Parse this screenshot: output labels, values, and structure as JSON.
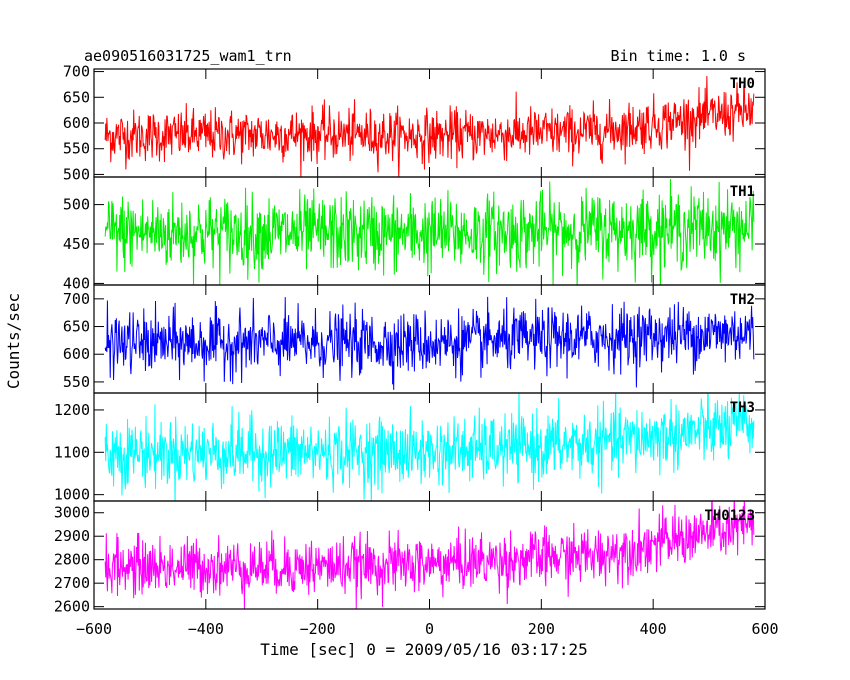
{
  "header": {
    "title": "ae090516031725_wam1_trn",
    "bin_time": "Bin time: 1.0 s"
  },
  "chart_data": {
    "type": "line",
    "xlabel": "Time [sec] 0 = 2009/05/16 03:17:25",
    "ylabel": "Counts/sec",
    "xlim": [
      -600,
      600
    ],
    "x_ticks": [
      -600,
      -400,
      -200,
      0,
      200,
      400,
      600
    ],
    "x_range_data": [
      -580,
      580
    ],
    "x_step": 1.0,
    "panels": [
      {
        "name": "TH0",
        "color": "#ff0000",
        "ylim": [
          495,
          705
        ],
        "y_ticks": [
          500,
          550,
          600,
          650,
          700
        ],
        "trend": {
          "x": [
            -580,
            -200,
            0,
            300,
            580
          ],
          "y": [
            575,
            578,
            575,
            583,
            625
          ]
        },
        "noise_amplitude": 25
      },
      {
        "name": "TH1",
        "color": "#00ee00",
        "ylim": [
          398,
          535
        ],
        "y_ticks": [
          400,
          450,
          500
        ],
        "trend": {
          "x": [
            -580,
            0,
            580
          ],
          "y": [
            465,
            463,
            472
          ]
        },
        "noise_amplitude": 24
      },
      {
        "name": "TH2",
        "color": "#0000ff",
        "ylim": [
          530,
          725
        ],
        "y_ticks": [
          550,
          600,
          650,
          700
        ],
        "trend": {
          "x": [
            -580,
            0,
            580
          ],
          "y": [
            620,
            620,
            640
          ]
        },
        "noise_amplitude": 28
      },
      {
        "name": "TH3",
        "color": "#00ffff",
        "ylim": [
          985,
          1240
        ],
        "y_ticks": [
          1000,
          1100,
          1200
        ],
        "trend": {
          "x": [
            -580,
            0,
            300,
            580
          ],
          "y": [
            1100,
            1100,
            1120,
            1165
          ]
        },
        "noise_amplitude": 40
      },
      {
        "name": "TH0123",
        "color": "#ff00ff",
        "ylim": [
          2590,
          3050
        ],
        "y_ticks": [
          2600,
          2700,
          2800,
          2900,
          3000
        ],
        "trend": {
          "x": [
            -580,
            -200,
            0,
            300,
            580
          ],
          "y": [
            2770,
            2770,
            2780,
            2820,
            2950
          ]
        },
        "noise_amplitude": 60
      }
    ]
  }
}
